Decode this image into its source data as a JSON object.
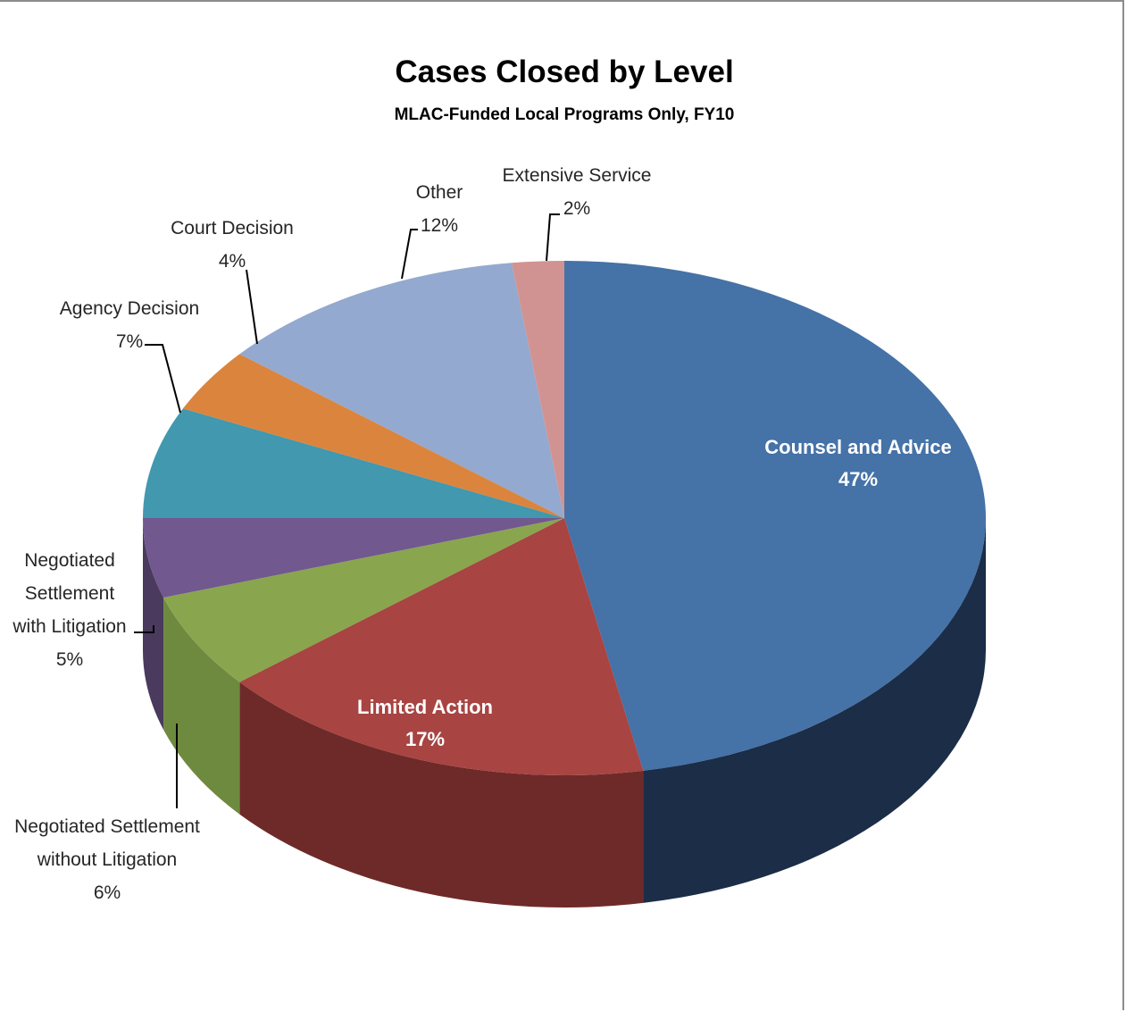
{
  "chart_data": {
    "type": "pie",
    "title": "Cases Closed by Level",
    "subtitle": "MLAC-Funded Local Programs Only, FY10",
    "slices": [
      {
        "key": "counsel",
        "label": "Counsel and Advice",
        "value": 47,
        "pct_label": "47%",
        "color": "#4572A7",
        "side_color": "#1B2D47",
        "label_style": "inside"
      },
      {
        "key": "limited",
        "label": "Limited Action",
        "value": 17,
        "pct_label": "17%",
        "color": "#A84442",
        "side_color": "#6E2A28",
        "label_style": "inside"
      },
      {
        "key": "negwithout",
        "label": "Negotiated Settlement without Litigation",
        "lines": [
          "Negotiated Settlement",
          "without Litigation"
        ],
        "value": 6,
        "pct_label": "6%",
        "color": "#89A54E",
        "side_color": "#6E8A3F",
        "label_style": "outside"
      },
      {
        "key": "negwith",
        "label": "Negotiated Settlement with Litigation",
        "lines": [
          "Negotiated",
          "Settlement",
          "with Litigation"
        ],
        "value": 5,
        "pct_label": "5%",
        "color": "#71588F",
        "side_color": "#4A3A5E",
        "label_style": "outside"
      },
      {
        "key": "agency",
        "label": "Agency Decision",
        "lines": [
          "Agency Decision"
        ],
        "value": 7,
        "pct_label": "7%",
        "color": "#4198AF",
        "side_color": "#2A6373",
        "label_style": "outside"
      },
      {
        "key": "court",
        "label": "Court Decision",
        "lines": [
          "Court Decision"
        ],
        "value": 4,
        "pct_label": "4%",
        "color": "#DB843D",
        "side_color": "#9A5A27",
        "label_style": "outside"
      },
      {
        "key": "other",
        "label": "Other",
        "lines": [
          "Other"
        ],
        "value": 12,
        "pct_label": "12%",
        "color": "#93A9CF",
        "side_color": "#6A7E9F",
        "label_style": "outside"
      },
      {
        "key": "extensive",
        "label": "Extensive Service",
        "lines": [
          "Extensive Service"
        ],
        "value": 2,
        "pct_label": "2%",
        "color": "#D19392",
        "side_color": "#9A6A69",
        "label_style": "outside"
      }
    ],
    "legend": "none",
    "view": "3d-tilted"
  }
}
